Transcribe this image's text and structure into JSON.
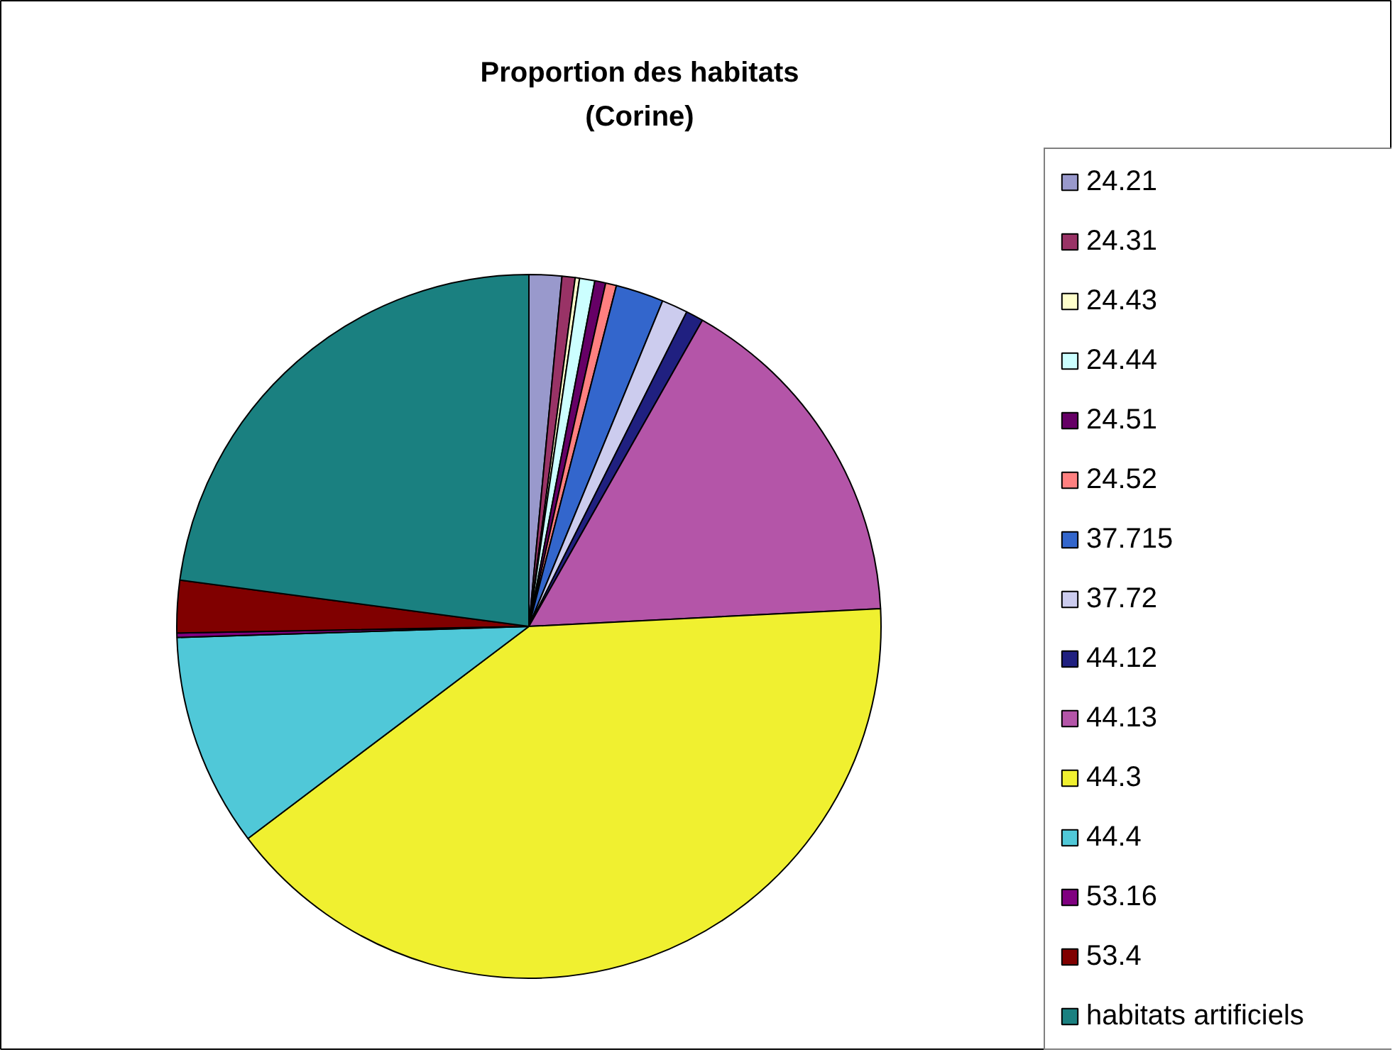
{
  "chart_data": {
    "type": "pie",
    "title": "Proportion des habitats\n(Corine)",
    "legend": "right",
    "categories": [
      "24.21",
      "24.31",
      "24.43",
      "24.44",
      "24.51",
      "24.52",
      "37.715",
      "37.72",
      "44.12",
      "44.13",
      "44.3",
      "44.4",
      "53.16",
      "53.4",
      "habitats artificiels"
    ],
    "values": [
      1.5,
      0.6,
      0.2,
      0.7,
      0.5,
      0.5,
      2.2,
      1.2,
      0.8,
      16.0,
      40.5,
      9.8,
      0.2,
      2.4,
      22.9
    ],
    "colors": [
      "#9999cc",
      "#993366",
      "#ffffcc",
      "#ccffff",
      "#660066",
      "#ff8080",
      "#3366cc",
      "#ccccee",
      "#202080",
      "#b455a8",
      "#f0f030",
      "#50c8d8",
      "#800080",
      "#800000",
      "#1a8080"
    ]
  }
}
